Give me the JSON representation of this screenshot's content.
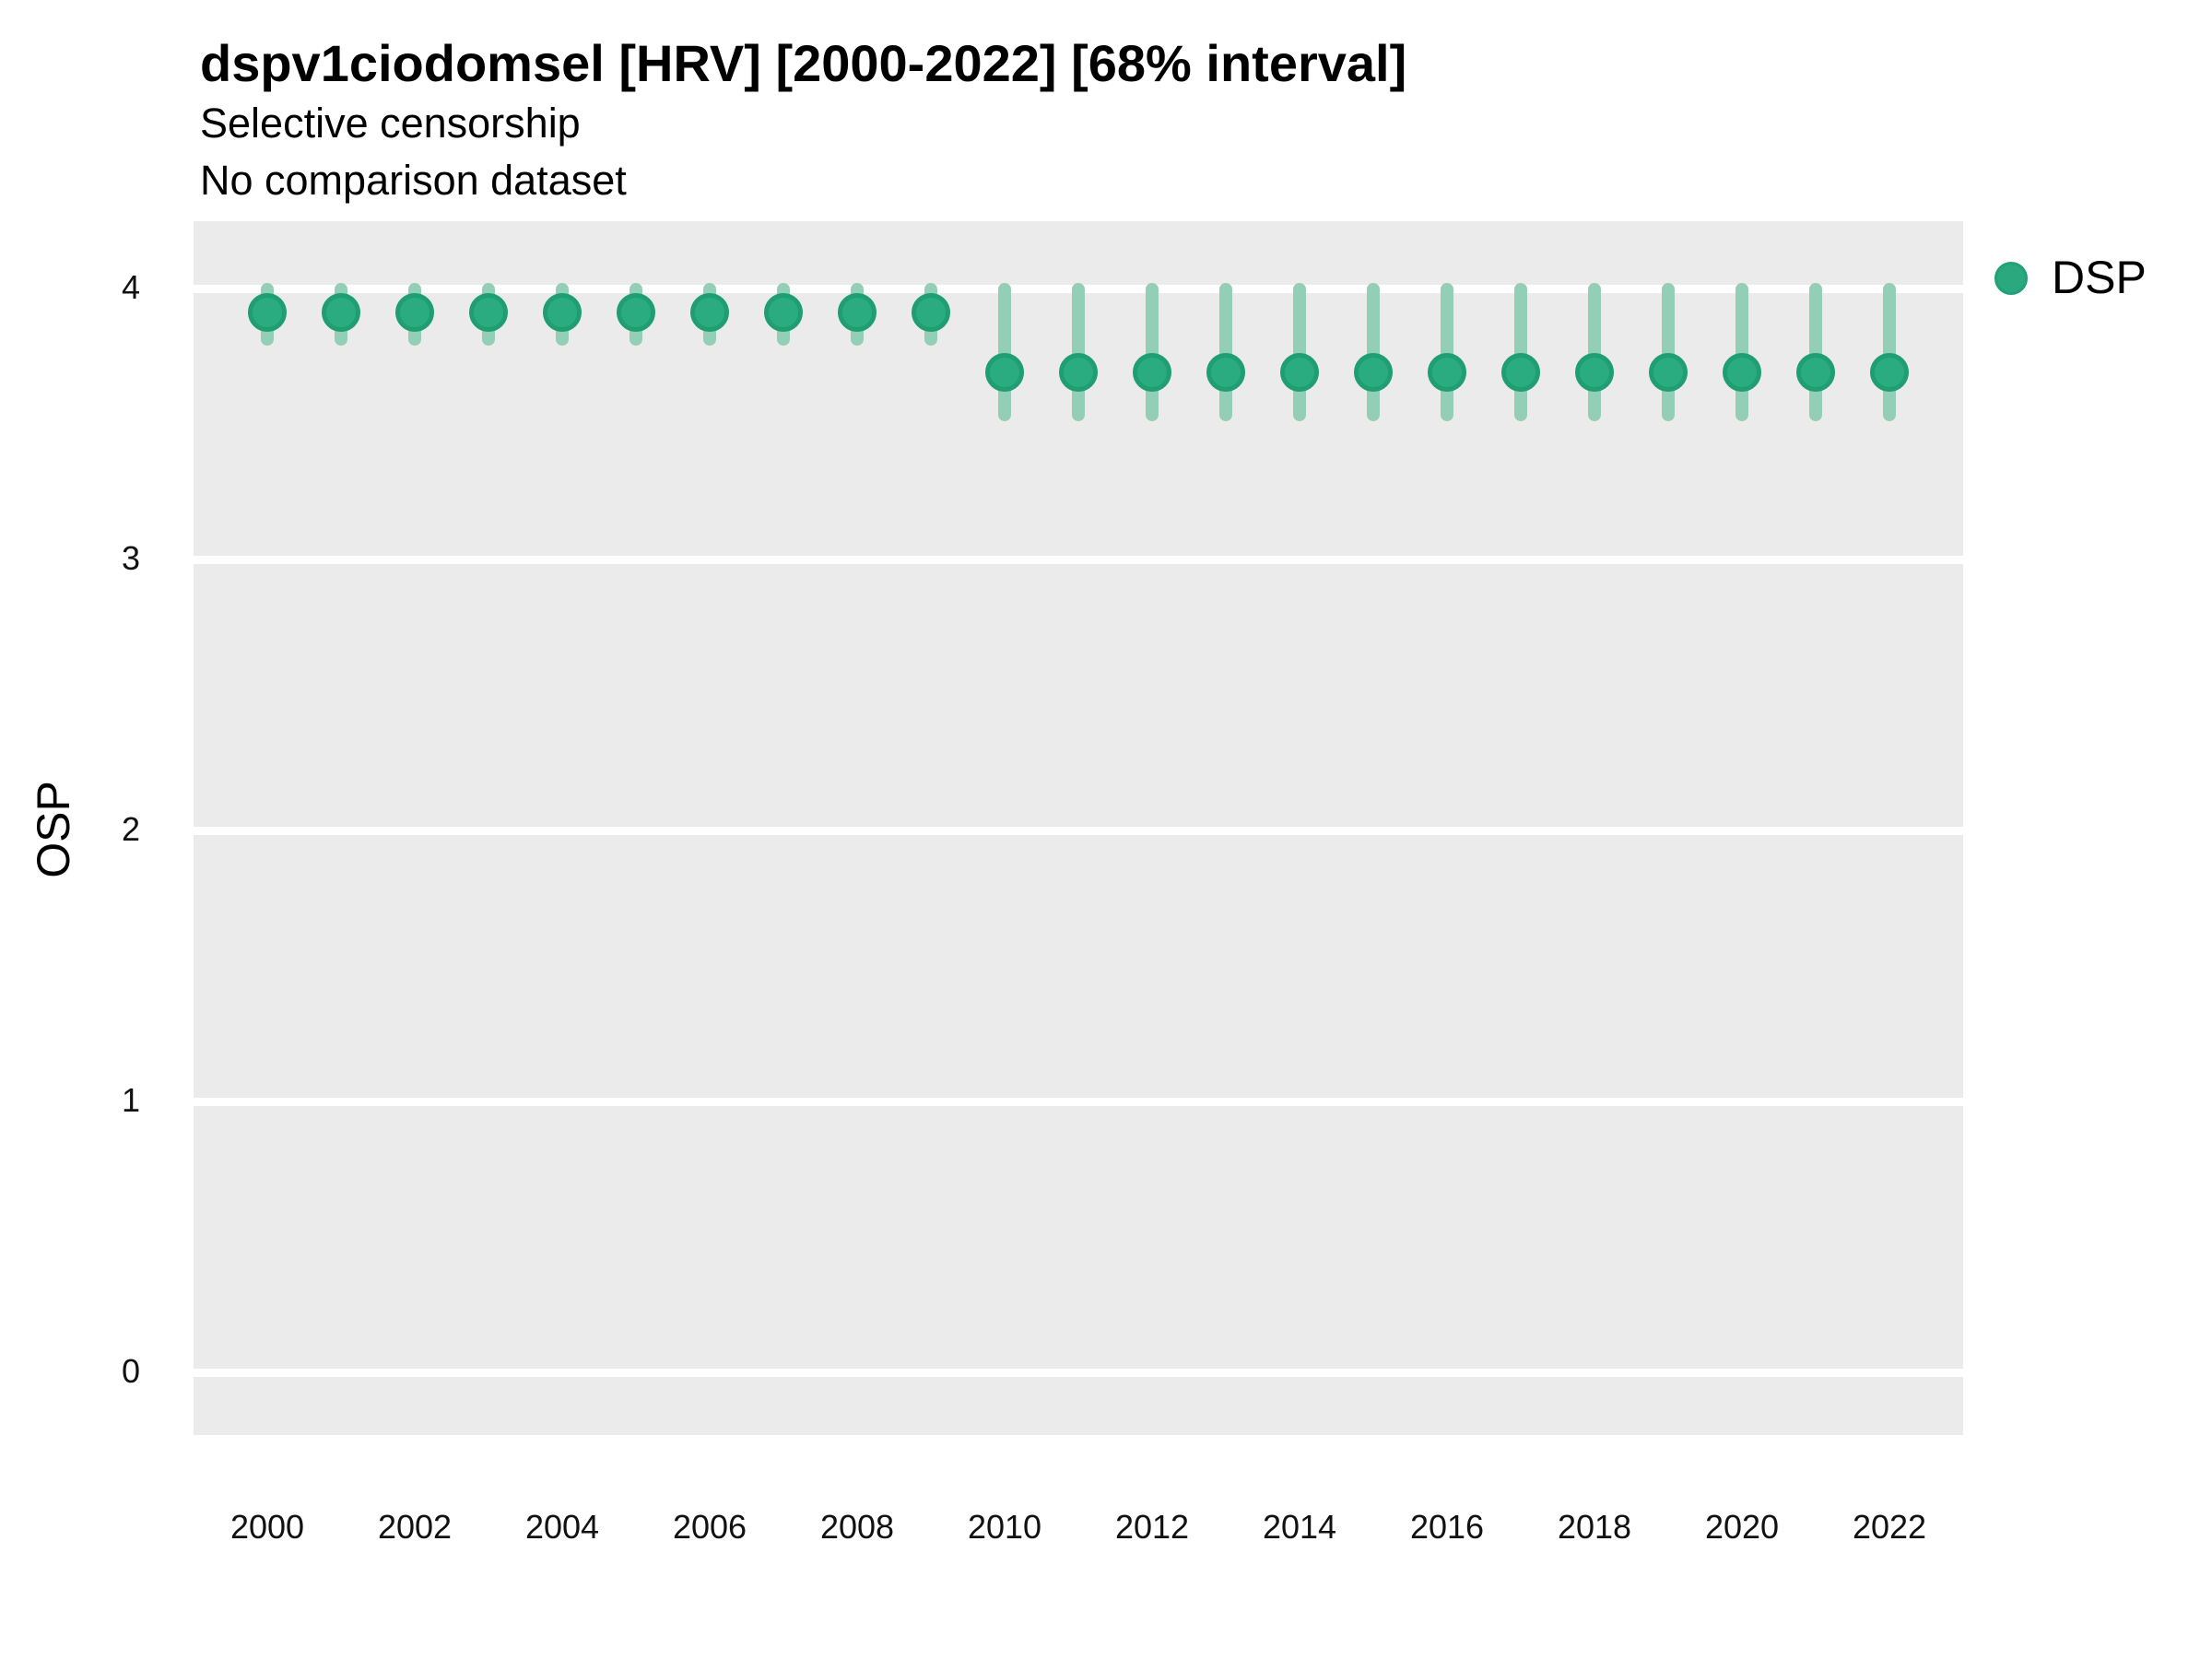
{
  "header": {
    "title": "dspv1ciodomsel [HRV] [2000-2022] [68% interval]",
    "subtitle1": "Selective censorship",
    "subtitle2": "No comparison dataset"
  },
  "legend": {
    "label": "DSP",
    "marker_color": "#2BA97E",
    "position": "top-right"
  },
  "colors": {
    "panel_background": "#EBEBEB",
    "gridline": "#FFFFFF",
    "point_fill": "#2BAB80",
    "point_stroke": "#1F9E73",
    "interval_bar": "#93CFB6",
    "text": "#000000"
  },
  "chart_data": {
    "type": "scatter",
    "mark": "pointrange",
    "title": "dspv1ciodomsel [HRV] [2000-2022] [68% interval]",
    "subtitle": "Selective censorship / No comparison dataset",
    "interval": "68%",
    "xlabel": "",
    "ylabel": "OSP",
    "x_ticks": [
      2000,
      2002,
      2004,
      2006,
      2008,
      2010,
      2012,
      2014,
      2016,
      2018,
      2020,
      2022
    ],
    "y_ticks": [
      0,
      1,
      2,
      3,
      4
    ],
    "xlim": [
      1999,
      2023
    ],
    "ylim": [
      -0.23,
      4.25
    ],
    "grid": "horizontal-major-only",
    "legend_position": "top-right",
    "series": [
      {
        "name": "DSP",
        "x": [
          2000,
          2001,
          2002,
          2003,
          2004,
          2005,
          2006,
          2007,
          2008,
          2009,
          2010,
          2011,
          2012,
          2013,
          2014,
          2015,
          2016,
          2017,
          2018,
          2019,
          2020,
          2021,
          2022
        ],
        "estimate": [
          3.91,
          3.91,
          3.91,
          3.91,
          3.91,
          3.91,
          3.91,
          3.91,
          3.91,
          3.91,
          3.69,
          3.69,
          3.69,
          3.69,
          3.69,
          3.69,
          3.69,
          3.69,
          3.69,
          3.69,
          3.69,
          3.69,
          3.69
        ],
        "lower_68": [
          3.81,
          3.81,
          3.81,
          3.81,
          3.81,
          3.81,
          3.81,
          3.81,
          3.81,
          3.81,
          3.53,
          3.53,
          3.53,
          3.53,
          3.53,
          3.53,
          3.53,
          3.53,
          3.53,
          3.53,
          3.53,
          3.53,
          3.53
        ],
        "upper_68": [
          4.0,
          4.0,
          4.0,
          4.0,
          4.0,
          4.0,
          4.0,
          4.0,
          4.0,
          4.0,
          4.0,
          4.0,
          4.0,
          4.0,
          4.0,
          4.0,
          4.0,
          4.0,
          4.0,
          4.0,
          4.0,
          4.0,
          4.0
        ]
      }
    ]
  }
}
